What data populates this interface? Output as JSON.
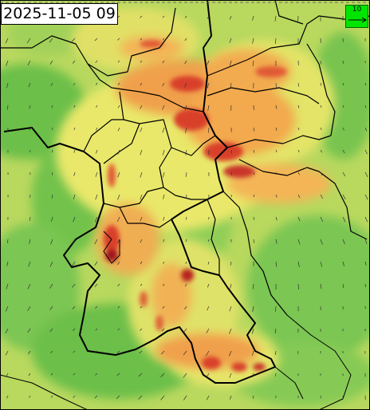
{
  "map": {
    "timestamp": "2025-11-05 09",
    "legend": {
      "reference_vector": "10",
      "color": "#00e600"
    },
    "palette": {
      "green": "#6cbf4a",
      "light_green": "#9bd65a",
      "yellow": "#e9e86a",
      "orange": "#f0a04b",
      "red": "#d9402c",
      "dark_red": "#a0141a",
      "boundary": "#000000",
      "vector": "#333333"
    },
    "icons": [
      "wind-vector-arrow-icon"
    ]
  }
}
